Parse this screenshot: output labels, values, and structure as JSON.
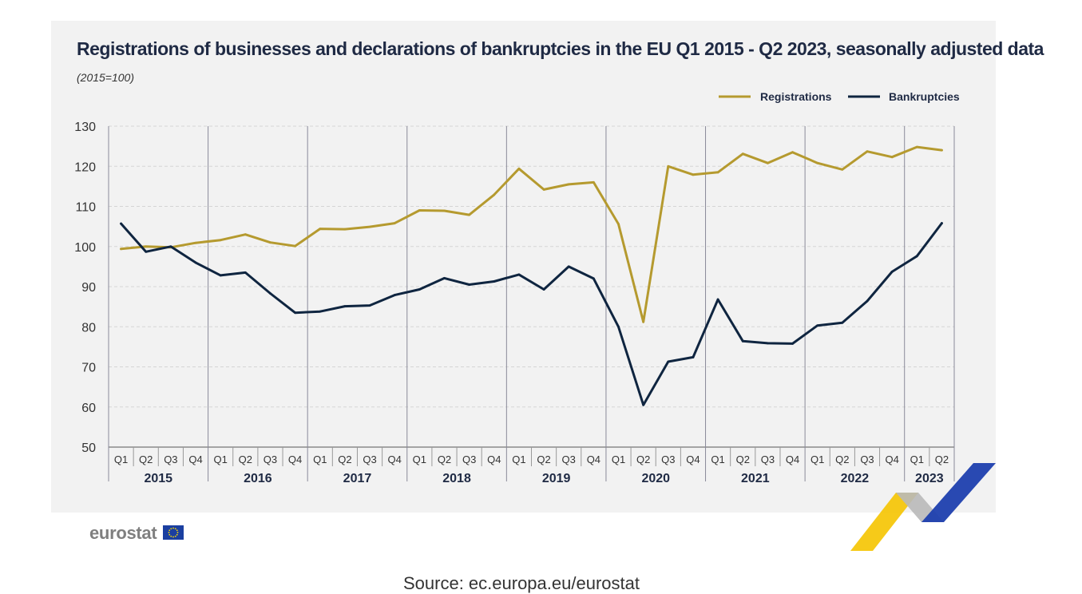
{
  "title": "Registrations of businesses and declarations of bankruptcies in the EU Q1 2015 - Q2 2023, seasonally adjusted data",
  "subtitle": "(2015=100)",
  "logo": {
    "text": "eurostat",
    "icon": "eu-flag-icon"
  },
  "footer": {
    "text": "Source: ec.europa.eu/eurostat"
  },
  "colors": {
    "registrations": "#b59a2f",
    "bankruptcies": "#0f2540",
    "panel": "#f2f2f2",
    "grid": "#d5d5d5",
    "separator": "#8a8a99"
  },
  "chart_data": {
    "type": "line",
    "title": "Registrations of businesses and declarations of bankruptcies in the EU Q1 2015 - Q2 2023, seasonally adjusted data",
    "subtitle": "(2015=100)",
    "xlabel": "",
    "ylabel": "",
    "ylim": [
      50,
      130
    ],
    "yticks": [
      50,
      60,
      70,
      80,
      90,
      100,
      110,
      120,
      130
    ],
    "grid": true,
    "legend_position": "top-right",
    "years": [
      "2015",
      "2016",
      "2017",
      "2018",
      "2019",
      "2020",
      "2021",
      "2022",
      "2023"
    ],
    "categories": [
      "Q1",
      "Q2",
      "Q3",
      "Q4",
      "Q1",
      "Q2",
      "Q3",
      "Q4",
      "Q1",
      "Q2",
      "Q3",
      "Q4",
      "Q1",
      "Q2",
      "Q3",
      "Q4",
      "Q1",
      "Q2",
      "Q3",
      "Q4",
      "Q1",
      "Q2",
      "Q3",
      "Q4",
      "Q1",
      "Q2",
      "Q3",
      "Q4",
      "Q1",
      "Q2",
      "Q3",
      "Q4",
      "Q1",
      "Q2"
    ],
    "series": [
      {
        "name": "Registrations",
        "color": "#b59a2f",
        "values": [
          99.4,
          100.0,
          99.8,
          100.9,
          101.6,
          103.0,
          101.0,
          100.1,
          104.4,
          104.3,
          104.9,
          105.8,
          109.0,
          108.9,
          107.9,
          112.9,
          119.4,
          114.2,
          115.5,
          116.0,
          105.6,
          81.2,
          120.0,
          117.9,
          118.5,
          123.1,
          120.8,
          123.5,
          120.8,
          119.2,
          123.7,
          122.3,
          124.8,
          124.0
        ]
      },
      {
        "name": "Bankruptcies",
        "color": "#0f2540",
        "values": [
          105.7,
          98.7,
          100.0,
          96.0,
          92.8,
          93.5,
          88.3,
          83.5,
          83.8,
          85.1,
          85.3,
          87.9,
          89.3,
          92.1,
          90.5,
          91.3,
          93.0,
          89.3,
          95.0,
          92.0,
          80.0,
          60.5,
          71.3,
          72.4,
          86.8,
          76.4,
          75.9,
          75.8,
          80.3,
          81.0,
          86.4,
          93.7,
          97.6,
          105.8
        ]
      }
    ]
  }
}
